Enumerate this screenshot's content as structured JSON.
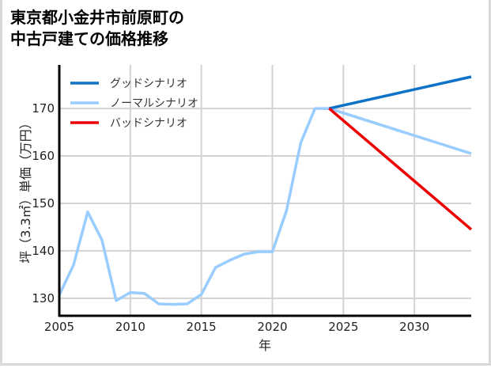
{
  "title_lines": [
    "東京都小金井市前原町の",
    "中古戸建ての価格推移"
  ],
  "chart_data": {
    "type": "line",
    "title": "東京都小金井市前原町の中古戸建ての価格推移",
    "xlabel": "年",
    "ylabel": "坪（3.3㎡）単価（万円）",
    "xlim": [
      2005,
      2034
    ],
    "ylim": [
      126.3,
      179.2
    ],
    "grid": true,
    "legend_position": "upper left",
    "x_ticks": [
      2005,
      2010,
      2015,
      2020,
      2025,
      2030
    ],
    "y_ticks": [
      130,
      140,
      150,
      160,
      170
    ],
    "series": [
      {
        "name": "グッドシナリオ",
        "color": "#0e72c7",
        "x": [
          2024,
          2034
        ],
        "values": [
          170.0,
          176.7
        ]
      },
      {
        "name": "ノーマルシナリオ",
        "color": "#99ccff",
        "x": [
          2005,
          2006,
          2007,
          2008,
          2009,
          2010,
          2011,
          2012,
          2013,
          2014,
          2015,
          2016,
          2017,
          2018,
          2019,
          2020,
          2021,
          2022,
          2023,
          2024,
          2034
        ],
        "values": [
          130.7,
          137.0,
          148.2,
          142.3,
          129.5,
          131.2,
          131.0,
          128.8,
          128.7,
          128.8,
          130.8,
          136.5,
          138.0,
          139.3,
          139.8,
          139.8,
          148.5,
          162.8,
          170.0,
          170.0,
          160.5
        ]
      },
      {
        "name": "バッドシナリオ",
        "color": "#ee0000",
        "x": [
          2024,
          2034
        ],
        "values": [
          170.0,
          144.5
        ]
      }
    ]
  }
}
